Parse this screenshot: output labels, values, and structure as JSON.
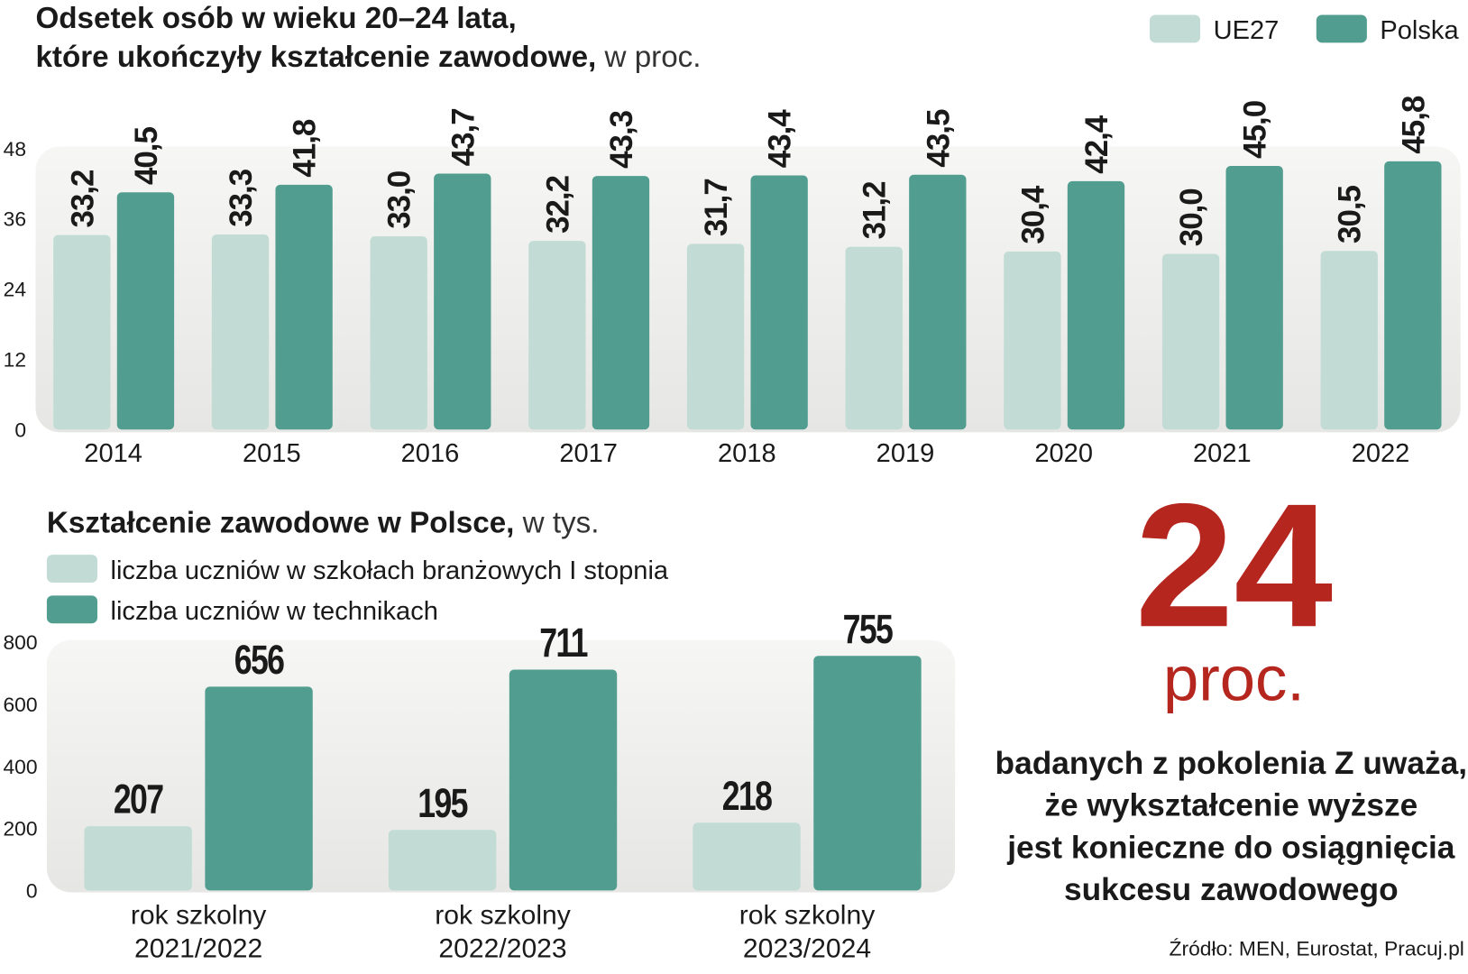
{
  "chart_data": [
    {
      "type": "bar",
      "title": [
        "Odsetek osób w wieku 20–24 lata,",
        "które ukończyły kształcenie zawodowe,"
      ],
      "title_unit": "w proc.",
      "categories": [
        "2014",
        "2015",
        "2016",
        "2017",
        "2018",
        "2019",
        "2020",
        "2021",
        "2022"
      ],
      "series": [
        {
          "name": "UE27",
          "color": "#c2dcd5",
          "values": [
            33.2,
            33.3,
            33.0,
            32.2,
            31.7,
            31.2,
            30.4,
            30.0,
            30.5
          ],
          "value_labels": [
            "33,2",
            "33,3",
            "33,0",
            "32,2",
            "31,7",
            "31,2",
            "30,4",
            "30,0",
            "30,5"
          ]
        },
        {
          "name": "Polska",
          "color": "#519e90",
          "values": [
            40.5,
            41.8,
            43.7,
            43.3,
            43.4,
            43.5,
            42.4,
            45.0,
            45.8
          ],
          "value_labels": [
            "40,5",
            "41,8",
            "43,7",
            "43,3",
            "43,4",
            "43,5",
            "42,4",
            "45,0",
            "45,8"
          ]
        }
      ],
      "ylim": [
        0,
        48
      ],
      "yticks": [
        0,
        12,
        24,
        36,
        48
      ],
      "legend": "top-right",
      "grid": false
    },
    {
      "type": "bar",
      "title": "Kształcenie zawodowe w Polsce,",
      "title_unit": "w tys.",
      "categories": [
        [
          "rok szkolny",
          "2021/2022"
        ],
        [
          "rok szkolny",
          "2022/2023"
        ],
        [
          "rok szkolny",
          "2023/2024"
        ]
      ],
      "series": [
        {
          "name": "liczba uczniów w szkołach branżowych I stopnia",
          "color": "#c2dcd5",
          "values": [
            207,
            195,
            218
          ]
        },
        {
          "name": "liczba uczniów w technikach",
          "color": "#519e90",
          "values": [
            656,
            711,
            755
          ]
        }
      ],
      "ylim": [
        0,
        800
      ],
      "yticks": [
        0,
        200,
        400,
        600,
        800
      ],
      "legend": "top-left",
      "grid": false
    }
  ],
  "callout": {
    "number": "24",
    "unit": "proc.",
    "text": [
      "badanych z pokolenia Z uważa,",
      "że wykształcenie wyższe",
      "jest konieczne do osiągnięcia",
      "sukcesu zawodowego"
    ]
  },
  "source": "Źródło: MEN, Eurostat, Pracuj.pl"
}
